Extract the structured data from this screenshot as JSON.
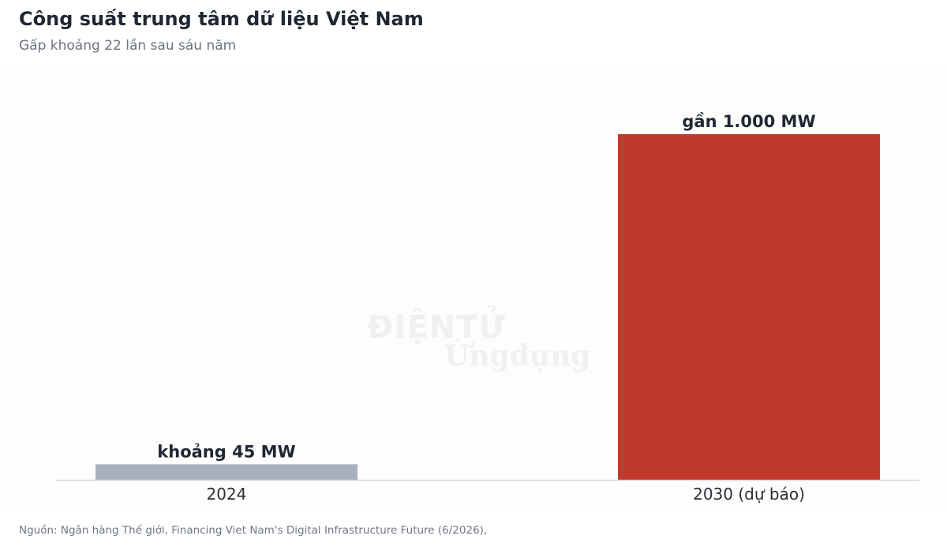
{
  "header": {
    "title": "Công suất trung tâm dữ liệu Việt Nam",
    "subtitle": "Gấp khoảng 22 lần sau sáu năm"
  },
  "watermark": {
    "line1": "ĐIỆNTỬ",
    "line2": "Ứngdụng"
  },
  "footer": {
    "source": "Nguồn: Ngân hàng Thế giới, Financing Viet Nam's Digital Infrastructure Future (6/2026),"
  },
  "chart_data": {
    "type": "bar",
    "categories": [
      "2024",
      "2030 (dự báo)"
    ],
    "values": [
      45,
      1000
    ],
    "data_labels": [
      "khoảng 45 MW",
      "gần 1.000 MW"
    ],
    "colors": [
      "#a8b0bc",
      "#c0392b"
    ],
    "ylim": [
      0,
      1000
    ],
    "grid": false,
    "legend": "none"
  }
}
